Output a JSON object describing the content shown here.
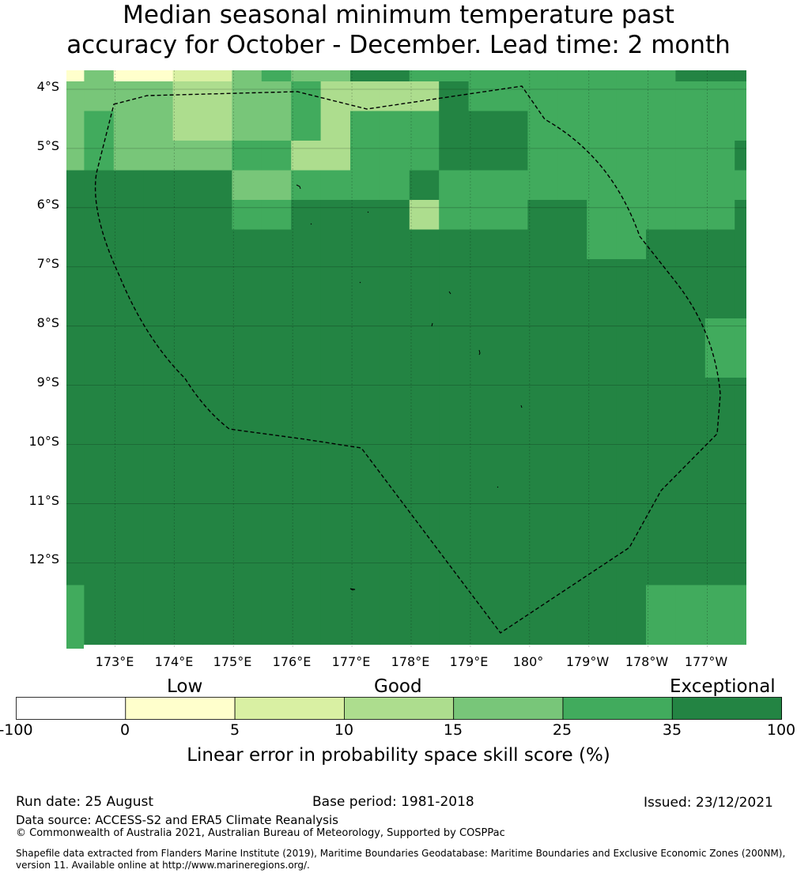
{
  "title": {
    "line1": "Median seasonal minimum temperature past",
    "line2": "accuracy for October - December. Lead time: 2 month"
  },
  "map": {
    "lat_labels": [
      "4°S",
      "5°S",
      "6°S",
      "7°S",
      "8°S",
      "9°S",
      "10°S",
      "11°S",
      "12°S"
    ],
    "lon_labels": [
      "173°E",
      "174°E",
      "175°E",
      "176°E",
      "177°E",
      "178°E",
      "179°E",
      "180°",
      "179°W",
      "178°W",
      "177°W"
    ],
    "lon_start_deg_e": 172.18,
    "lon_end_deg_e": 183.66,
    "lat_start_deg_n": -3.68,
    "lat_end_deg_n": -13.45,
    "boundary_style": "dashed black EEZ outline",
    "grid": true
  },
  "colorbar": {
    "categories": [
      "Low",
      "Good",
      "Exceptional"
    ],
    "ticks": [
      "-100",
      "0",
      "5",
      "10",
      "15",
      "25",
      "35",
      "100"
    ],
    "colors": [
      "#ffffff",
      "#ffffcc",
      "#d9f0a3",
      "#addd8e",
      "#78c679",
      "#41ab5d",
      "#238443"
    ],
    "label": "Linear error in probability space skill score (%)"
  },
  "footer": {
    "run_date": "Run date: 25 August",
    "base_period": "Base period: 1981-2018",
    "issued": "Issued: 23/12/2021",
    "data_source": "Data source: ACCESS-S2 and ERA5 Climate Reanalysis",
    "copyright": "© Commonwealth of Australia 2021, Australian Bureau of Meteorology, Supported by COSPPac",
    "shapefile_line1": "Shapefile data extracted from Flanders Marine Institute (2019), Maritime Boundaries Geodatabase: Maritime Boundaries and Exclusive Economic Zones (200NM),",
    "shapefile_line2": "version 11. Available online at http://www.marineregions.org/."
  }
}
